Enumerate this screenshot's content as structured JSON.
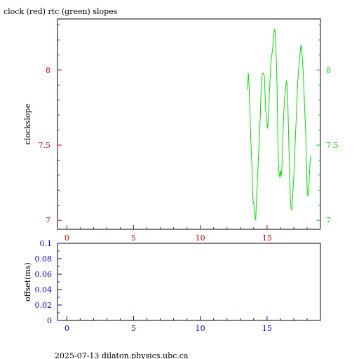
{
  "header": {
    "title": "clock (red) rtc (green) slopes"
  },
  "footer": {
    "text": "2025-07-13  dilaton.physics.ubc.ca"
  },
  "colors": {
    "frame": "#000000",
    "top_x_ticks": "#cc0000",
    "left_y_ticks": "#cc0000",
    "right_y_ticks": "#00cc00",
    "bottom_ticks": "#0000cc",
    "rtc_series": "#00dd00"
  },
  "chart_data": [
    {
      "type": "line",
      "title": "clock (red) rtc (green) slopes",
      "xlabel": "",
      "ylabel": "clockslope",
      "xlim": [
        -0.7,
        19.0
      ],
      "ylim": [
        6.94,
        8.34
      ],
      "x_ticks": [
        0,
        5,
        10,
        15
      ],
      "x_tick_labels": [
        "0",
        "5",
        "10",
        "15"
      ],
      "y_ticks": [
        7,
        7.5,
        8
      ],
      "y_tick_labels": [
        "7",
        "7.5",
        "8"
      ],
      "right_y_tick_labels": [
        "7",
        "7.5",
        "8"
      ],
      "grid": false,
      "series": [
        {
          "color": "#00dd00",
          "points": [
            [
              13.5,
              7.87
            ],
            [
              13.55,
              7.9
            ],
            [
              13.6,
              7.98
            ],
            [
              13.65,
              7.9
            ],
            [
              13.7,
              7.78
            ],
            [
              13.75,
              7.62
            ],
            [
              13.8,
              7.5
            ],
            [
              13.85,
              7.4
            ],
            [
              13.9,
              7.26
            ],
            [
              13.95,
              7.13
            ],
            [
              14.0,
              7.11
            ],
            [
              14.05,
              7.08
            ],
            [
              14.1,
              7.02
            ],
            [
              14.15,
              7.0
            ],
            [
              14.2,
              7.12
            ],
            [
              14.3,
              7.3
            ],
            [
              14.4,
              7.5
            ],
            [
              14.5,
              7.7
            ],
            [
              14.55,
              7.85
            ],
            [
              14.6,
              7.96
            ],
            [
              14.7,
              7.98
            ],
            [
              14.8,
              7.96
            ],
            [
              14.85,
              7.85
            ],
            [
              14.9,
              7.73
            ],
            [
              14.95,
              7.7
            ],
            [
              15.0,
              7.64
            ],
            [
              15.05,
              7.61
            ],
            [
              15.1,
              7.7
            ],
            [
              15.15,
              7.8
            ],
            [
              15.2,
              7.9
            ],
            [
              15.3,
              8.06
            ],
            [
              15.4,
              8.13
            ],
            [
              15.5,
              8.23
            ],
            [
              15.55,
              8.27
            ],
            [
              15.6,
              8.26
            ],
            [
              15.65,
              8.2
            ],
            [
              15.7,
              8.05
            ],
            [
              15.75,
              7.9
            ],
            [
              15.8,
              7.6
            ],
            [
              15.85,
              7.4
            ],
            [
              15.9,
              7.3
            ],
            [
              15.95,
              7.29
            ],
            [
              16.0,
              7.33
            ],
            [
              16.05,
              7.29
            ],
            [
              16.1,
              7.33
            ],
            [
              16.15,
              7.42
            ],
            [
              16.2,
              7.6
            ],
            [
              16.3,
              7.8
            ],
            [
              16.4,
              7.88
            ],
            [
              16.45,
              7.93
            ],
            [
              16.5,
              7.9
            ],
            [
              16.55,
              7.8
            ],
            [
              16.6,
              7.62
            ],
            [
              16.65,
              7.45
            ],
            [
              16.7,
              7.28
            ],
            [
              16.75,
              7.13
            ],
            [
              16.8,
              7.08
            ],
            [
              16.85,
              7.07
            ],
            [
              16.9,
              7.12
            ],
            [
              17.0,
              7.28
            ],
            [
              17.1,
              7.5
            ],
            [
              17.2,
              7.7
            ],
            [
              17.3,
              7.92
            ],
            [
              17.4,
              8.04
            ],
            [
              17.5,
              8.13
            ],
            [
              17.55,
              8.17
            ],
            [
              17.6,
              8.13
            ],
            [
              17.7,
              8.0
            ],
            [
              17.8,
              7.78
            ],
            [
              17.9,
              7.58
            ],
            [
              17.95,
              7.38
            ],
            [
              18.0,
              7.22
            ],
            [
              18.05,
              7.16
            ],
            [
              18.1,
              7.18
            ],
            [
              18.15,
              7.26
            ],
            [
              18.2,
              7.35
            ],
            [
              18.25,
              7.43
            ]
          ]
        }
      ]
    },
    {
      "type": "line",
      "title": "",
      "xlabel": "",
      "ylabel": "offset(ms)",
      "xlim": [
        -0.7,
        19.0
      ],
      "ylim": [
        0,
        0.1
      ],
      "x_ticks": [
        0,
        5,
        10,
        15
      ],
      "x_tick_labels": [
        "0",
        "5",
        "10",
        "15"
      ],
      "y_ticks": [
        0,
        0.02,
        0.04,
        0.06,
        0.08,
        0.1
      ],
      "y_tick_labels": [
        "0",
        "0.02",
        "0.04",
        "0.06",
        "0.08",
        "0.1"
      ],
      "grid": false,
      "series": []
    }
  ]
}
